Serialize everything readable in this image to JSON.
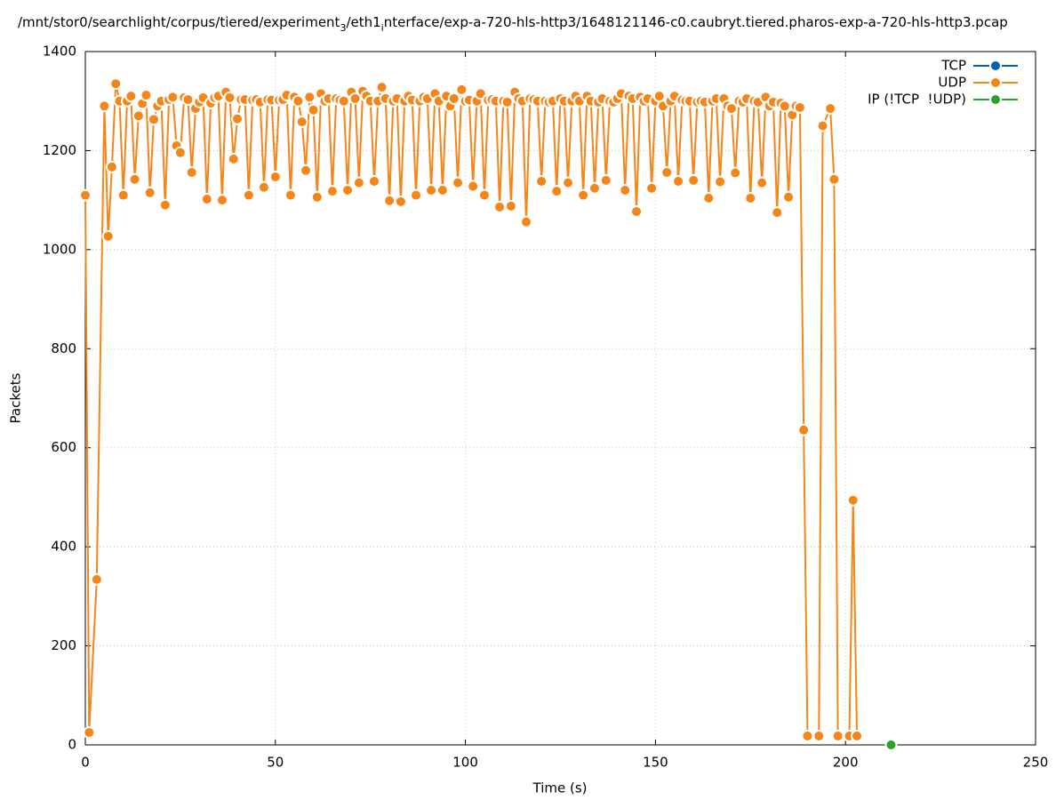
{
  "chart_data": {
    "type": "line",
    "title": [
      "/mnt/stor0/searchlight/corpus/tiered/experiment",
      "3",
      "/eth1",
      "i",
      "nterface/exp-a-720-hls-http3/1648121146-c0.caubryt.tiered.pharos-exp-a-720-hls-http3.pcap"
    ],
    "xlabel": "Time (s)",
    "ylabel": "Packets",
    "xlim": [
      0,
      250
    ],
    "xticks": [
      0,
      50,
      100,
      150,
      200,
      250
    ],
    "ylim": [
      0,
      1400
    ],
    "yticks": [
      0,
      200,
      400,
      600,
      800,
      1000,
      1200,
      1400
    ],
    "grid": true,
    "legend": "top-right",
    "series": [
      {
        "name": "TCP",
        "color": "#0060ad",
        "x": [],
        "values": []
      },
      {
        "name": "UDP",
        "color": "#f58518",
        "x": [
          0,
          1,
          3,
          5,
          6,
          7,
          8,
          9,
          10,
          11,
          12,
          13,
          14,
          15,
          16,
          17,
          18,
          19,
          20,
          21,
          22,
          23,
          24,
          25,
          26,
          27,
          28,
          29,
          30,
          31,
          32,
          33,
          34,
          35,
          36,
          37,
          38,
          39,
          40,
          41,
          42,
          43,
          44,
          45,
          46,
          47,
          48,
          49,
          50,
          51,
          52,
          53,
          54,
          55,
          56,
          57,
          58,
          59,
          60,
          61,
          62,
          63,
          64,
          65,
          66,
          67,
          68,
          69,
          70,
          71,
          72,
          73,
          74,
          75,
          76,
          77,
          78,
          79,
          80,
          81,
          82,
          83,
          84,
          85,
          86,
          87,
          88,
          89,
          90,
          91,
          92,
          93,
          94,
          95,
          96,
          97,
          98,
          99,
          100,
          101,
          102,
          103,
          104,
          105,
          106,
          107,
          108,
          109,
          110,
          111,
          112,
          113,
          114,
          115,
          116,
          117,
          118,
          119,
          120,
          121,
          122,
          123,
          124,
          125,
          126,
          127,
          128,
          129,
          130,
          131,
          132,
          133,
          134,
          135,
          136,
          137,
          138,
          139,
          140,
          141,
          142,
          143,
          144,
          145,
          146,
          147,
          148,
          149,
          150,
          151,
          152,
          153,
          154,
          155,
          156,
          157,
          158,
          159,
          160,
          161,
          162,
          163,
          164,
          165,
          166,
          167,
          168,
          169,
          170,
          171,
          172,
          173,
          174,
          175,
          176,
          177,
          178,
          179,
          180,
          181,
          182,
          183,
          184,
          185,
          186,
          187,
          188,
          189,
          190,
          191,
          192,
          193,
          194,
          196,
          197,
          198,
          199,
          200,
          201,
          202,
          203
        ],
        "values": [
          1110,
          25,
          334,
          1290,
          1027,
          1167,
          1335,
          1300,
          1110,
          1300,
          1310,
          1142,
          1270,
          1295,
          1312,
          1115,
          1263,
          1290,
          1300,
          1090,
          1303,
          1308,
          1210,
          1196,
          1307,
          1303,
          1156,
          1285,
          1298,
          1307,
          1102,
          1296,
          1307,
          1310,
          1100,
          1318,
          1307,
          1183,
          1264,
          1303,
          1303,
          1110,
          1302,
          1303,
          1298,
          1126,
          1303,
          1302,
          1147,
          1302,
          1303,
          1312,
          1110,
          1308,
          1300,
          1258,
          1160,
          1308,
          1282,
          1106,
          1315,
          1300,
          1305,
          1118,
          1305,
          1302,
          1300,
          1120,
          1318,
          1305,
          1135,
          1320,
          1310,
          1300,
          1138,
          1300,
          1328,
          1305,
          1099,
          1300,
          1305,
          1097,
          1300,
          1310,
          1302,
          1110,
          1300,
          1308,
          1305,
          1120,
          1315,
          1300,
          1120,
          1310,
          1290,
          1305,
          1135,
          1323,
          1300,
          1302,
          1128,
          1300,
          1315,
          1110,
          1302,
          1303,
          1300,
          1086,
          1300,
          1298,
          1088,
          1318,
          1305,
          1300,
          1056,
          1305,
          1303,
          1300,
          1138,
          1300,
          1298,
          1300,
          1118,
          1305,
          1300,
          1135,
          1300,
          1310,
          1300,
          1110,
          1310,
          1300,
          1124,
          1298,
          1305,
          1140,
          1300,
          1298,
          1305,
          1315,
          1120,
          1310,
          1305,
          1077,
          1308,
          1300,
          1305,
          1124,
          1300,
          1310,
          1290,
          1156,
          1300,
          1310,
          1138,
          1302,
          1300,
          1300,
          1140,
          1298,
          1300,
          1298,
          1104,
          1300,
          1305,
          1137,
          1305,
          1290,
          1285,
          1155,
          1300,
          1298,
          1305,
          1104,
          1300,
          1298,
          1135,
          1308,
          1290,
          1298,
          1075,
          1296,
          1290,
          1106,
          1272,
          1290,
          1287,
          636,
          18,
          null,
          null,
          18,
          1250,
          1285,
          1142,
          18,
          null,
          null,
          18,
          494,
          18
        ]
      },
      {
        "name": "IP (!TCP  !UDP)",
        "color": "#2ca02c",
        "x": [
          212
        ],
        "values": [
          0
        ]
      }
    ]
  }
}
